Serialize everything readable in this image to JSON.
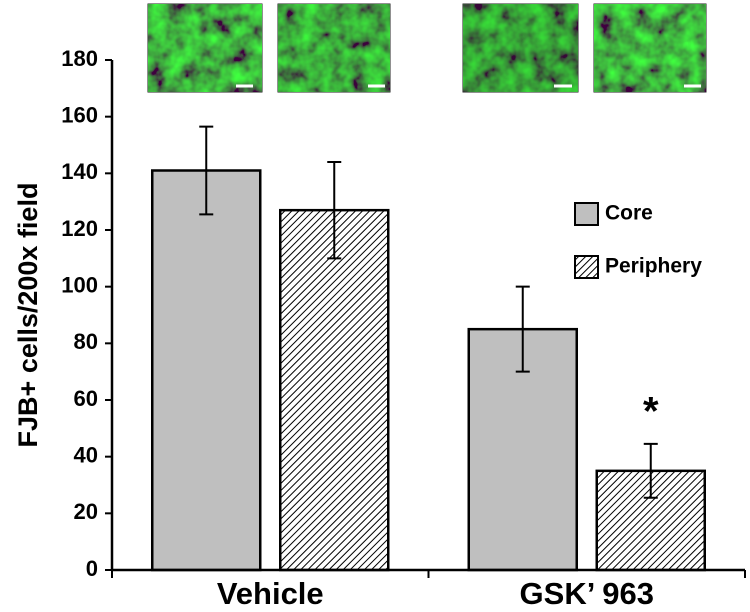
{
  "chart_data": {
    "type": "bar",
    "y_label": "FJB+ cells/200x field",
    "categories": [
      "Vehicle",
      "GSK’ 963"
    ],
    "series": [
      {
        "name": "Core",
        "color": "#bfbfbf",
        "hatch": false,
        "values": [
          141,
          85
        ],
        "errors": [
          15.5,
          15
        ]
      },
      {
        "name": "Periphery",
        "color": "#000000",
        "hatch": true,
        "values": [
          127,
          35
        ],
        "errors": [
          17,
          9.5
        ]
      }
    ],
    "annotations": [
      "*"
    ],
    "ylim": [
      0,
      180
    ],
    "yticks": [
      0,
      20,
      40,
      60,
      80,
      100,
      120,
      140,
      160,
      180
    ],
    "grid": false,
    "legend": "right"
  }
}
